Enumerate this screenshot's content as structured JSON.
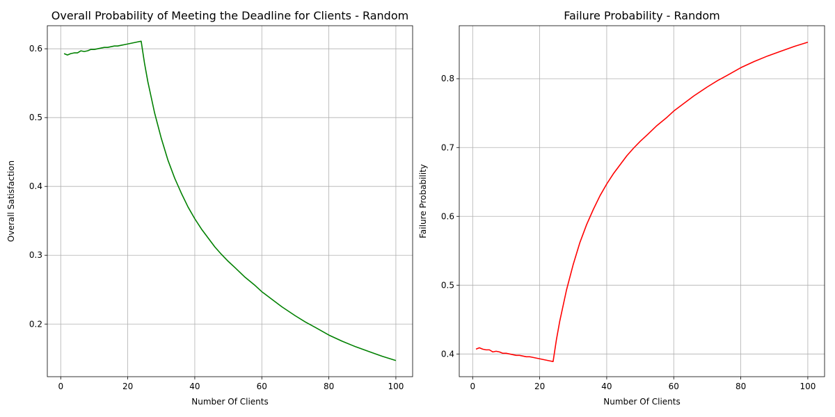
{
  "chart_data": [
    {
      "type": "line",
      "title": "Overall Probability of Meeting the Deadline for Clients - Random",
      "xlabel": "Number Of Clients",
      "ylabel": "Overall Satisfaction",
      "xlim": [
        -4.0,
        105.0
      ],
      "ylim": [
        0.1235,
        0.6335
      ],
      "xticks": [
        0,
        20,
        40,
        60,
        80,
        100
      ],
      "yticks": [
        0.2,
        0.3,
        0.4,
        0.5,
        0.6
      ],
      "ytick_labels": [
        "0.2",
        "0.3",
        "0.4",
        "0.5",
        "0.6"
      ],
      "grid": true,
      "color": "#008000",
      "x": [
        1,
        2,
        3,
        4,
        5,
        6,
        7,
        8,
        9,
        10,
        11,
        12,
        13,
        14,
        15,
        16,
        17,
        18,
        19,
        20,
        21,
        22,
        23,
        24,
        25,
        26,
        28,
        30,
        32,
        34,
        36,
        38,
        40,
        42,
        44,
        46,
        48,
        50,
        52,
        55,
        58,
        60,
        63,
        66,
        70,
        73,
        76,
        80,
        84,
        88,
        92,
        96,
        100
      ],
      "y": [
        0.593,
        0.591,
        0.593,
        0.594,
        0.594,
        0.597,
        0.596,
        0.597,
        0.599,
        0.599,
        0.6,
        0.601,
        0.602,
        0.602,
        0.603,
        0.604,
        0.604,
        0.605,
        0.606,
        0.607,
        0.608,
        0.609,
        0.61,
        0.611,
        0.579,
        0.552,
        0.507,
        0.47,
        0.438,
        0.412,
        0.39,
        0.37,
        0.353,
        0.338,
        0.325,
        0.312,
        0.301,
        0.291,
        0.282,
        0.268,
        0.256,
        0.247,
        0.236,
        0.225,
        0.212,
        0.203,
        0.195,
        0.184,
        0.175,
        0.167,
        0.16,
        0.153,
        0.147
      ]
    },
    {
      "type": "line",
      "title": "Failure Probability - Random",
      "xlabel": "Number Of Clients",
      "ylabel": "Failure Probability",
      "xlim": [
        -4.0,
        105.0
      ],
      "ylim": [
        0.367,
        0.877
      ],
      "xticks": [
        0,
        20,
        40,
        60,
        80,
        100
      ],
      "yticks": [
        0.4,
        0.5,
        0.6,
        0.7,
        0.8
      ],
      "ytick_labels": [
        "0.4",
        "0.5",
        "0.6",
        "0.7",
        "0.8"
      ],
      "grid": true,
      "color": "#ff0000",
      "x": [
        1,
        2,
        3,
        4,
        5,
        6,
        7,
        8,
        9,
        10,
        11,
        12,
        13,
        14,
        15,
        16,
        17,
        18,
        19,
        20,
        21,
        22,
        23,
        24,
        25,
        26,
        28,
        30,
        32,
        34,
        36,
        38,
        40,
        42,
        44,
        46,
        48,
        50,
        52,
        55,
        58,
        60,
        63,
        66,
        70,
        73,
        76,
        80,
        84,
        88,
        92,
        96,
        100
      ],
      "y": [
        0.407,
        0.409,
        0.407,
        0.406,
        0.406,
        0.403,
        0.404,
        0.403,
        0.401,
        0.401,
        0.4,
        0.399,
        0.398,
        0.398,
        0.397,
        0.396,
        0.396,
        0.395,
        0.394,
        0.393,
        0.392,
        0.391,
        0.39,
        0.389,
        0.421,
        0.448,
        0.493,
        0.53,
        0.562,
        0.588,
        0.61,
        0.63,
        0.647,
        0.662,
        0.675,
        0.688,
        0.699,
        0.709,
        0.718,
        0.732,
        0.744,
        0.753,
        0.764,
        0.775,
        0.788,
        0.797,
        0.805,
        0.816,
        0.825,
        0.833,
        0.84,
        0.847,
        0.853
      ]
    }
  ]
}
